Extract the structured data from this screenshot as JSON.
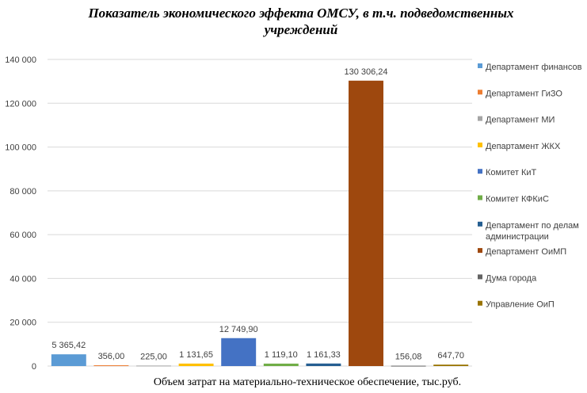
{
  "chart_data": {
    "type": "bar",
    "title_lines": [
      "Показатель экономического эффекта ОМСУ, в т.ч. подведомственных",
      "учреждений"
    ],
    "xlabel": "Объем затрат на материально-техническое обеспечение, тыс.руб.",
    "ylabel": "",
    "ylim": [
      0,
      140000
    ],
    "yticks": [
      0,
      20000,
      40000,
      60000,
      80000,
      100000,
      120000,
      140000
    ],
    "ytick_labels": [
      "0",
      "20 000",
      "40 000",
      "60 000",
      "80 000",
      "100 000",
      "120 000",
      "140 000"
    ],
    "grid": true,
    "legend_position": "right",
    "series": [
      {
        "name": "Департамент финансов",
        "value": 5365.42,
        "label": "5 365,42",
        "color": "#5b9bd5"
      },
      {
        "name": "Департамент ГиЗО",
        "value": 356.0,
        "label": "356,00",
        "color": "#ed7d31"
      },
      {
        "name": "Департамент МИ",
        "value": 225.0,
        "label": "225,00",
        "color": "#a5a5a5"
      },
      {
        "name": "Департамент ЖКХ",
        "value": 1131.65,
        "label": "1 131,65",
        "color": "#ffc000"
      },
      {
        "name": "Комитет КиТ",
        "value": 12749.9,
        "label": "12 749,90",
        "color": "#4472c4"
      },
      {
        "name": "Комитет КФКиС",
        "value": 1119.1,
        "label": "1 119,10",
        "color": "#70ad47"
      },
      {
        "name_lines": [
          "Департамент по делам",
          "администрации"
        ],
        "value": 1161.33,
        "label": "1 161,33",
        "color": "#255e91"
      },
      {
        "name": "Департамент ОиМП",
        "value": 130306.24,
        "label": "130 306,24",
        "color": "#9e480e"
      },
      {
        "name": "Дума города",
        "value": 156.08,
        "label": "156,08",
        "color": "#636363"
      },
      {
        "name": "Управление ОиП",
        "value": 647.7,
        "label": "647,70",
        "color": "#997300"
      }
    ]
  }
}
